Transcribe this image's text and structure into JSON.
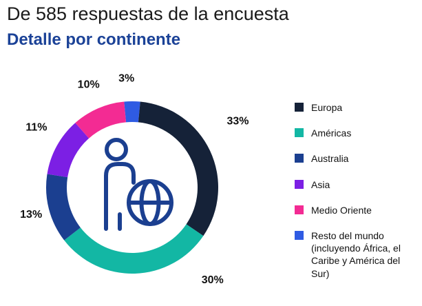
{
  "header": {
    "title": "De 585 respuestas de la encuesta",
    "subtitle": "Detalle por continente"
  },
  "colors": {
    "title": "#1a1a1a",
    "subtitle": "#1b4297",
    "percent_labels": "#111111"
  },
  "chart_data": {
    "type": "pie",
    "subtype": "donut",
    "title": "Detalle por continente",
    "total": 100,
    "units": "%",
    "direction": "clockwise",
    "start_angle_deg": -5.4,
    "legend_position": "right",
    "center_icon": "person-globe-icon",
    "center_icon_color": "#1b3f90",
    "slices": [
      {
        "id": "resto-del-mundo",
        "label": "Resto del mundo (incluyendo África, el Caribe y América del Sur)",
        "value": 3,
        "pct_label": "3%",
        "color": "#2f5be3",
        "label_angle_deg": -3,
        "label_radius": 158
      },
      {
        "id": "europa",
        "label": "Europa",
        "value": 33,
        "pct_label": "33%",
        "color": "#152238",
        "label_angle_deg": 58,
        "label_radius": 181
      },
      {
        "id": "americas",
        "label": "Américas",
        "value": 30,
        "pct_label": "30%",
        "color": "#13b7a4",
        "label_angle_deg": 139,
        "label_radius": 178
      },
      {
        "id": "australia",
        "label": "Australia",
        "value": 13,
        "pct_label": "13%",
        "color": "#1b3f90",
        "label_angle_deg": 255,
        "label_radius": 152
      },
      {
        "id": "asia",
        "label": "Asia",
        "value": 11,
        "pct_label": "11%",
        "color": "#7c1fe4",
        "label_angle_deg": 302,
        "label_radius": 164
      },
      {
        "id": "medio-oriente",
        "label": "Medio Oriente",
        "value": 10,
        "pct_label": "10%",
        "color": "#f32b93",
        "label_angle_deg": 337,
        "label_radius": 162
      }
    ]
  },
  "legend": {
    "items": [
      {
        "id": "europa",
        "label": "Europa",
        "color": "#152238"
      },
      {
        "id": "americas",
        "label": "Américas",
        "color": "#13b7a4"
      },
      {
        "id": "australia",
        "label": "Australia",
        "color": "#1b3f90"
      },
      {
        "id": "asia",
        "label": "Asia",
        "color": "#7c1fe4"
      },
      {
        "id": "medio-oriente",
        "label": "Medio Oriente",
        "color": "#f32b93"
      },
      {
        "id": "resto-del-mundo",
        "label": "Resto del mundo (incluyendo África, el Caribe y América del Sur)",
        "color": "#2f5be3"
      }
    ]
  }
}
